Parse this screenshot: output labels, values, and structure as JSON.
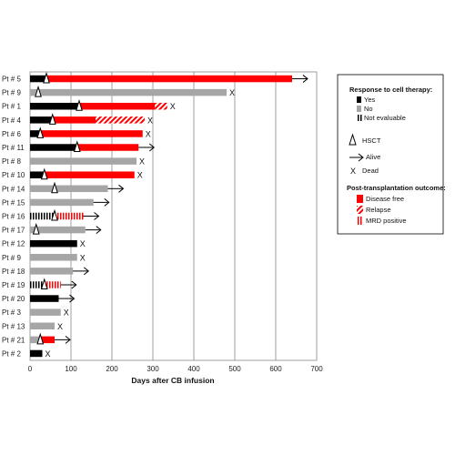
{
  "chart_data": {
    "type": "bar",
    "xlabel": "Days after CB infusion",
    "xlim": [
      0,
      700
    ],
    "xticks": [
      0,
      100,
      200,
      300,
      400,
      500,
      600,
      700
    ],
    "grid": true,
    "legend_position": "right",
    "colors": {
      "yes": "#000000",
      "no": "#a6a6a6",
      "disease_free": "#ff0000",
      "relapse": "#ff0000",
      "mrd": "#ff0000"
    },
    "patients": [
      {
        "label": "Pt # 5",
        "response": "yes",
        "response_end": 40,
        "hsct": 40,
        "post": "disease_free",
        "post_end": 640,
        "outcome": "alive"
      },
      {
        "label": "Pt # 9",
        "response": "no",
        "response_end": 480,
        "hsct": 20,
        "post": null,
        "post_end": null,
        "outcome": "dead"
      },
      {
        "label": "Pt # 1",
        "response": "yes",
        "response_end": 120,
        "hsct": 120,
        "post": "disease_free",
        "post_end": 305,
        "relapse_end": 335,
        "outcome": "dead"
      },
      {
        "label": "Pt # 4",
        "response": "yes",
        "response_end": 60,
        "hsct": 55,
        "post": "disease_free",
        "post_end": 160,
        "relapse_end": 280,
        "outcome": "dead"
      },
      {
        "label": "Pt # 6",
        "response": "yes",
        "response_end": 25,
        "hsct": 25,
        "post": "disease_free",
        "post_end": 275,
        "outcome": "dead"
      },
      {
        "label": "Pt # 11",
        "response": "yes",
        "response_end": 115,
        "hsct": 115,
        "post": "disease_free",
        "post_end": 265,
        "outcome": "alive"
      },
      {
        "label": "Pt # 8",
        "response": "no",
        "response_end": 260,
        "hsct": null,
        "post": null,
        "post_end": null,
        "outcome": "dead"
      },
      {
        "label": "Pt # 10",
        "response": "yes",
        "response_end": 35,
        "hsct": 35,
        "post": "disease_free",
        "post_end": 255,
        "outcome": "dead"
      },
      {
        "label": "Pt # 14",
        "response": "no",
        "response_end": 190,
        "hsct": 60,
        "post": null,
        "post_end": null,
        "outcome": "alive"
      },
      {
        "label": "Pt # 15",
        "response": "no",
        "response_end": 155,
        "hsct": null,
        "post": null,
        "post_end": null,
        "outcome": "alive"
      },
      {
        "label": "Pt # 16",
        "response": "not_evaluable",
        "response_end": 60,
        "hsct": 60,
        "post": "mrd",
        "post_end": 130,
        "outcome": "alive"
      },
      {
        "label": "Pt # 17",
        "response": "no",
        "response_end": 135,
        "hsct": 15,
        "post": null,
        "post_end": null,
        "outcome": "alive"
      },
      {
        "label": "Pt # 12",
        "response": "yes",
        "response_end": 115,
        "hsct": null,
        "post": null,
        "post_end": null,
        "outcome": "dead"
      },
      {
        "label": "Pt # 9",
        "response": "no",
        "response_end": 115,
        "hsct": null,
        "post": null,
        "post_end": null,
        "outcome": "dead"
      },
      {
        "label": "Pt # 18",
        "response": "no",
        "response_end": 105,
        "hsct": null,
        "post": null,
        "post_end": null,
        "outcome": "alive"
      },
      {
        "label": "Pt # 19",
        "response": "not_evaluable",
        "response_end": 35,
        "hsct": 35,
        "post": "mrd",
        "post_end": 75,
        "outcome": "alive"
      },
      {
        "label": "Pt # 20",
        "response": "yes",
        "response_end": 70,
        "hsct": null,
        "post": null,
        "post_end": null,
        "outcome": "alive"
      },
      {
        "label": "Pt # 3",
        "response": "no",
        "response_end": 75,
        "hsct": null,
        "post": null,
        "post_end": null,
        "outcome": "dead"
      },
      {
        "label": "Pt # 13",
        "response": "no",
        "response_end": 60,
        "hsct": null,
        "post": null,
        "post_end": null,
        "outcome": "dead"
      },
      {
        "label": "Pt # 21",
        "response": "no",
        "response_end": 25,
        "hsct": 25,
        "post": "disease_free",
        "post_end": 60,
        "outcome": "alive"
      },
      {
        "label": "Pt # 2",
        "response": "yes",
        "response_end": 30,
        "hsct": null,
        "post": null,
        "post_end": null,
        "outcome": "dead"
      }
    ]
  },
  "legend": {
    "response_title": "Response to cell therapy:",
    "response_items": [
      {
        "key": "yes",
        "label": "Yes"
      },
      {
        "key": "no",
        "label": "No"
      },
      {
        "key": "not_evaluable",
        "label": "Not evaluable"
      }
    ],
    "hsct_label": "HSCT",
    "alive_label": "Alive",
    "dead_label": "Dead",
    "dead_symbol": "X",
    "post_title": "Post-transplantation outcome:",
    "post_items": [
      {
        "key": "disease_free",
        "label": "Disease free"
      },
      {
        "key": "relapse",
        "label": "Relapse"
      },
      {
        "key": "mrd",
        "label": "MRD positive"
      }
    ]
  }
}
